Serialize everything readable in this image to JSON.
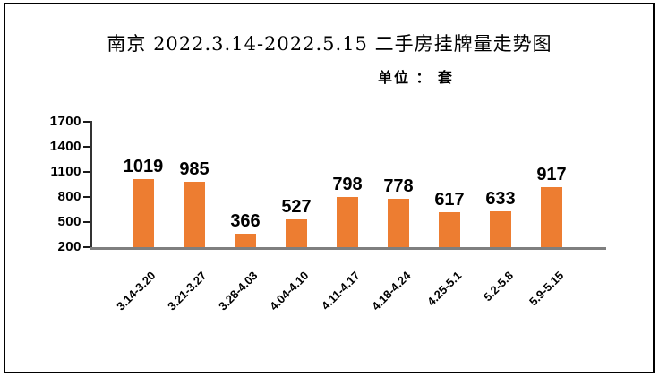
{
  "chart_data": {
    "type": "bar",
    "title": "南京 2022.3.14-2022.5.15 二手房挂牌量走势图",
    "unit_label": "单位 ： 套",
    "categories": [
      "3.14-3.20",
      "3.21-3.27",
      "3.28-4.03",
      "4.04-4.10",
      "4.11-4.17",
      "4.18-4.24",
      "4.25-5.1",
      "5.2-5.8",
      "5.9-5.15"
    ],
    "values": [
      1019,
      985,
      366,
      527,
      798,
      778,
      617,
      633,
      917
    ],
    "yticks": [
      200,
      500,
      800,
      1100,
      1400,
      1700
    ],
    "ylim": [
      200,
      1700
    ],
    "xlabel": "",
    "ylabel": "",
    "grid": false,
    "legend_position": "none",
    "data_labels_shown": true,
    "bar_color": "#ED7D31",
    "baseline_color": "#7F7F7F",
    "axis_color": "#333333",
    "frame_color": "#000000"
  }
}
